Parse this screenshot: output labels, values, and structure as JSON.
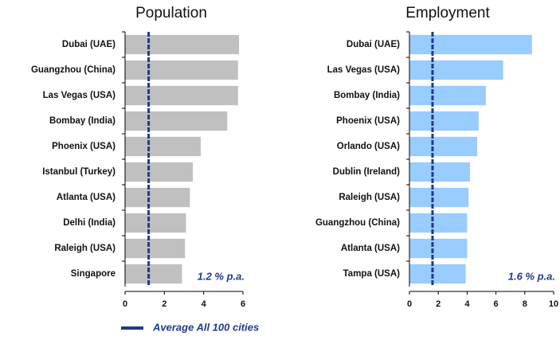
{
  "chart_data": [
    {
      "type": "bar",
      "orientation": "horizontal",
      "title": "Population",
      "categories": [
        "Dubai (UAE)",
        "Guangzhou (China)",
        "Las Vegas (USA)",
        "Bombay (India)",
        "Phoenix (USA)",
        "Istanbul (Turkey)",
        "Atlanta (USA)",
        "Delhi (India)",
        "Raleigh (USA)",
        "Singapore"
      ],
      "values": [
        5.8,
        5.75,
        5.75,
        5.2,
        3.85,
        3.45,
        3.3,
        3.1,
        3.05,
        2.9
      ],
      "color": "#c0c0c0",
      "xlim": [
        0,
        6
      ],
      "xticks": [
        0,
        2,
        4,
        6
      ],
      "average": 1.2,
      "average_label": "1.2 % p.a."
    },
    {
      "type": "bar",
      "orientation": "horizontal",
      "title": "Employment",
      "categories": [
        "Dubai (UAE)",
        "Las Vegas (USA)",
        "Bombay (India)",
        "Phoenix (USA)",
        "Orlando (USA)",
        "Dublin (Ireland)",
        "Raleigh (USA)",
        "Guangzhou (China)",
        "Atlanta (USA)",
        "Tampa (USA)"
      ],
      "values": [
        8.5,
        6.5,
        5.3,
        4.8,
        4.7,
        4.2,
        4.1,
        4.0,
        4.0,
        3.9
      ],
      "color": "#99ccff",
      "xlim": [
        0,
        10
      ],
      "xticks": [
        0,
        2,
        4,
        6,
        8,
        10
      ],
      "average": 1.6,
      "average_label": "1.6 % p.a."
    }
  ],
  "legend": {
    "label": "Average All 100 cities",
    "color": "#1f3a8a"
  }
}
